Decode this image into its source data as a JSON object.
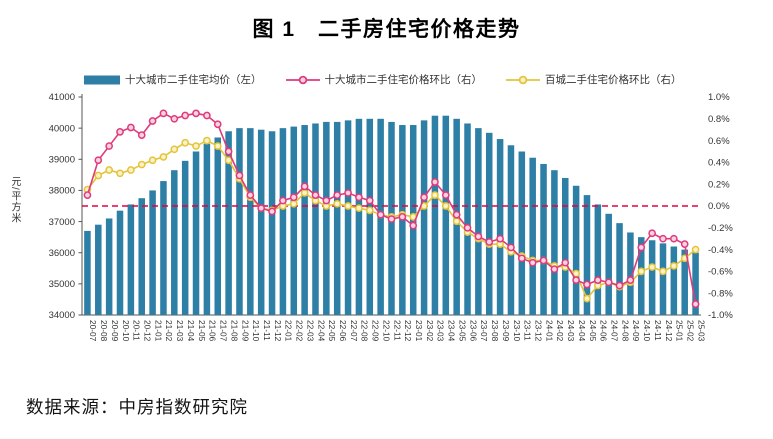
{
  "chart_data": {
    "type": "combo",
    "title": "图 1　二手房住宅价格走势",
    "source": "数据来源：中房指数研究院",
    "categories": [
      "20-07",
      "20-08",
      "20-09",
      "20-10",
      "20-11",
      "20-12",
      "21-01",
      "21-02",
      "21-03",
      "21-04",
      "21-05",
      "21-06",
      "21-07",
      "21-08",
      "21-09",
      "21-10",
      "21-11",
      "21-12",
      "22-01",
      "22-02",
      "22-03",
      "22-04",
      "22-05",
      "22-06",
      "22-07",
      "22-08",
      "22-09",
      "22-10",
      "22-11",
      "22-12",
      "23-01",
      "23-02",
      "23-03",
      "23-04",
      "23-05",
      "23-06",
      "23-07",
      "23-08",
      "23-09",
      "23-10",
      "23-11",
      "23-12",
      "24-01",
      "24-02",
      "24-03",
      "24-04",
      "24-05",
      "24-06",
      "24-07",
      "24-08",
      "24-09",
      "24-10",
      "24-11",
      "24-12",
      "25-01",
      "25-02",
      "25-03"
    ],
    "left_axis": {
      "label": "元/平方米",
      "min": 34000,
      "max": 41000,
      "ticks": [
        "41000",
        "40000",
        "39000",
        "38000",
        "37000",
        "36000",
        "35000",
        "34000"
      ]
    },
    "right_axis": {
      "min": -1.0,
      "max": 1.0,
      "ticks": [
        "1.0%",
        "0.8%",
        "0.6%",
        "0.4%",
        "0.2%",
        "0.0%",
        "-0.2%",
        "-0.4%",
        "-0.6%",
        "-0.8%",
        "-1.0%"
      ]
    },
    "reference_line": {
      "value": 0.0,
      "axis": "right",
      "color": "#e60040",
      "style": "dashed"
    },
    "series": [
      {
        "name": "十大城市二手住宅均价（左）",
        "type": "bar",
        "axis": "left",
        "color": "#2e7fa6",
        "values": [
          36700,
          36900,
          37100,
          37350,
          37550,
          37750,
          38000,
          38300,
          38650,
          38950,
          39250,
          39500,
          39700,
          39900,
          40000,
          40000,
          39950,
          39900,
          40000,
          40050,
          40100,
          40150,
          40200,
          40200,
          40250,
          40300,
          40300,
          40300,
          40200,
          40100,
          40100,
          40250,
          40400,
          40400,
          40300,
          40150,
          40000,
          39850,
          39650,
          39450,
          39250,
          39050,
          38850,
          38650,
          38400,
          38150,
          37850,
          37550,
          37250,
          36950,
          36650,
          36500,
          36400,
          36300,
          36200,
          36100,
          36000
        ]
      },
      {
        "name": "十大城市二手住宅价格环比（右）",
        "type": "line",
        "axis": "right",
        "color": "#e03a7c",
        "marker_fill": "#f7d3e1",
        "values": [
          0.1,
          0.42,
          0.55,
          0.68,
          0.72,
          0.65,
          0.78,
          0.85,
          0.8,
          0.83,
          0.85,
          0.83,
          0.75,
          0.5,
          0.28,
          0.1,
          -0.02,
          -0.05,
          0.05,
          0.08,
          0.18,
          0.1,
          0.05,
          0.1,
          0.12,
          0.08,
          0.05,
          -0.08,
          -0.12,
          -0.1,
          -0.18,
          0.08,
          0.22,
          0.1,
          -0.08,
          -0.2,
          -0.28,
          -0.33,
          -0.3,
          -0.38,
          -0.48,
          -0.52,
          -0.5,
          -0.58,
          -0.52,
          -0.68,
          -0.72,
          -0.68,
          -0.7,
          -0.73,
          -0.68,
          -0.38,
          -0.25,
          -0.3,
          -0.3,
          -0.35,
          -0.9
        ]
      },
      {
        "name": "百城二手住宅价格环比（右）",
        "type": "line",
        "axis": "right",
        "color": "#e3c43a",
        "marker_fill": "#fbf1c6",
        "values": [
          0.15,
          0.28,
          0.33,
          0.3,
          0.33,
          0.38,
          0.42,
          0.45,
          0.52,
          0.58,
          0.55,
          0.6,
          0.55,
          0.42,
          0.25,
          0.08,
          -0.02,
          -0.04,
          0.0,
          0.02,
          0.12,
          0.05,
          0.0,
          0.02,
          0.0,
          -0.02,
          -0.04,
          -0.08,
          -0.1,
          -0.08,
          -0.1,
          0.0,
          0.1,
          0.0,
          -0.14,
          -0.24,
          -0.3,
          -0.35,
          -0.35,
          -0.42,
          -0.46,
          -0.5,
          -0.5,
          -0.55,
          -0.56,
          -0.62,
          -0.85,
          -0.73,
          -0.7,
          -0.74,
          -0.7,
          -0.6,
          -0.56,
          -0.6,
          -0.55,
          -0.48,
          -0.4
        ]
      }
    ],
    "layout": {
      "legend_position": "top",
      "grid": "off"
    }
  }
}
